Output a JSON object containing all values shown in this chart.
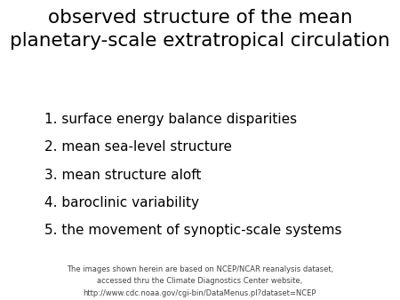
{
  "title_line1": "observed structure of the mean",
  "title_line2": "planetary-scale extratropical circulation",
  "items": [
    "1. surface energy balance disparities",
    "2. mean sea-level structure",
    "3. mean structure aloft",
    "4. baroclinic variability",
    "5. the movement of synoptic-scale systems"
  ],
  "footer_line1": "The images shown herein are based on NCEP/NCAR reanalysis dataset,",
  "footer_line2": "accessed thru the Climate Diagnostics Center website,",
  "footer_line3": "http://www.cdc.noaa.gov/cgi-bin/DataMenus.pl?dataset=NCEP",
  "bg_color": "#ffffff",
  "title_color": "#000000",
  "item_color": "#000000",
  "footer_color": "#444444",
  "title_fontsize": 15.5,
  "item_fontsize": 11,
  "footer_fontsize": 6.0
}
